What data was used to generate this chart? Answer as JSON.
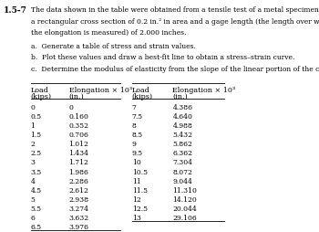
{
  "problem_number": "1.5-7",
  "intro_text": [
    "The data shown in the table were obtained from a tensile test of a metal specimen with",
    "a rectangular cross section of 0.2 in.² in area and a gage length (the length over which",
    "the elongation is measured) of 2.000 inches."
  ],
  "sub_items": [
    "a.  Generate a table of stress and strain values.",
    "b.  Plot these values and draw a best-fit line to obtain a stress–strain curve.",
    "c.  Determine the modulus of elasticity from the slope of the linear portion of the curve."
  ],
  "col1_header": [
    "Load",
    "(kips)"
  ],
  "col2_header": [
    "Elongation × 10³",
    "(in.)"
  ],
  "col3_header": [
    "Load",
    "(kips)"
  ],
  "col4_header": [
    "Elongation × 10³",
    "(in.)"
  ],
  "left_load": [
    0,
    0.5,
    1.0,
    1.5,
    2.0,
    2.5,
    3.0,
    3.5,
    4.0,
    4.5,
    5.0,
    5.5,
    6.0,
    6.5
  ],
  "left_elong": [
    0,
    0.16,
    0.352,
    0.706,
    1.012,
    1.434,
    1.712,
    1.986,
    2.286,
    2.612,
    2.938,
    3.274,
    3.632,
    3.976
  ],
  "right_load": [
    7.0,
    7.5,
    8.0,
    8.5,
    9.0,
    9.5,
    10.0,
    10.5,
    11.0,
    11.5,
    12.0,
    12.5,
    13
  ],
  "right_elong": [
    4.386,
    4.64,
    4.988,
    5.432,
    5.862,
    6.362,
    7.304,
    8.072,
    9.044,
    11.31,
    14.12,
    20.044,
    29.106
  ],
  "bg_color": "#ffffff",
  "text_color": "#000000",
  "font_size_body": 5.5,
  "font_size_header": 5.8,
  "font_size_problem": 6.5
}
